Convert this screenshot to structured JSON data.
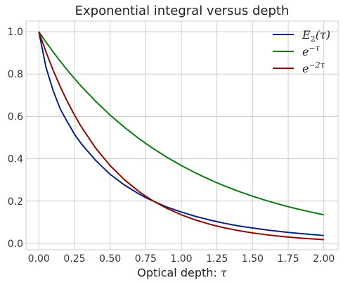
{
  "chart_data": {
    "type": "line",
    "title": "Exponential integral versus depth",
    "xlabel_text": "Optical depth: ",
    "xlabel_symbol": "τ",
    "xlim": [
      -0.09,
      2.1
    ],
    "ylim": [
      -0.03,
      1.05
    ],
    "grid": true,
    "legend_placement": "top-right",
    "xticks": [
      0.0,
      0.25,
      0.5,
      0.75,
      1.0,
      1.25,
      1.5,
      1.75,
      2.0
    ],
    "xtick_labels": [
      "0.00",
      "0.25",
      "0.50",
      "0.75",
      "1.00",
      "1.25",
      "1.50",
      "1.75",
      "2.00"
    ],
    "yticks": [
      0.0,
      0.2,
      0.4,
      0.6,
      0.8,
      1.0
    ],
    "ytick_labels": [
      "0.0",
      "0.2",
      "0.4",
      "0.6",
      "0.8",
      "1.0"
    ],
    "x": [
      0.0,
      0.05,
      0.1,
      0.15,
      0.2,
      0.25,
      0.3,
      0.4,
      0.5,
      0.6,
      0.7,
      0.75,
      0.8,
      0.9,
      1.0,
      1.1,
      1.2,
      1.25,
      1.3,
      1.4,
      1.5,
      1.6,
      1.7,
      1.75,
      1.8,
      1.9,
      2.0
    ],
    "series": [
      {
        "legend_base": "E",
        "legend_sub": "2",
        "legend_arg": "(τ)",
        "color": "#0c2283",
        "values": [
          1.0,
          0.8324,
          0.7225,
          0.6352,
          0.5742,
          0.5162,
          0.4691,
          0.3915,
          0.3266,
          0.2762,
          0.2349,
          0.2165,
          0.2009,
          0.1715,
          0.1485,
          0.1278,
          0.1108,
          0.1029,
          0.0956,
          0.0829,
          0.0731,
          0.0637,
          0.0559,
          0.0523,
          0.049,
          0.0431,
          0.0375
        ]
      },
      {
        "legend_base": "e",
        "legend_sup": "−τ",
        "color": "#0e7a16",
        "values": [
          1.0,
          0.9512,
          0.9048,
          0.8607,
          0.8187,
          0.7788,
          0.7408,
          0.6703,
          0.6065,
          0.5488,
          0.4966,
          0.4724,
          0.4493,
          0.4066,
          0.3679,
          0.3329,
          0.3012,
          0.2865,
          0.2725,
          0.2466,
          0.2231,
          0.2019,
          0.1827,
          0.1738,
          0.1653,
          0.1496,
          0.1353
        ]
      },
      {
        "legend_base": "e",
        "legend_sup": "−2τ",
        "color": "#8b0a00",
        "values": [
          1.0,
          0.9048,
          0.8187,
          0.7408,
          0.6703,
          0.6065,
          0.5488,
          0.4493,
          0.3679,
          0.3012,
          0.2466,
          0.2231,
          0.2019,
          0.1653,
          0.1353,
          0.1108,
          0.0907,
          0.0821,
          0.0743,
          0.0608,
          0.0498,
          0.0408,
          0.0334,
          0.0302,
          0.0273,
          0.0224,
          0.0183
        ]
      }
    ]
  }
}
